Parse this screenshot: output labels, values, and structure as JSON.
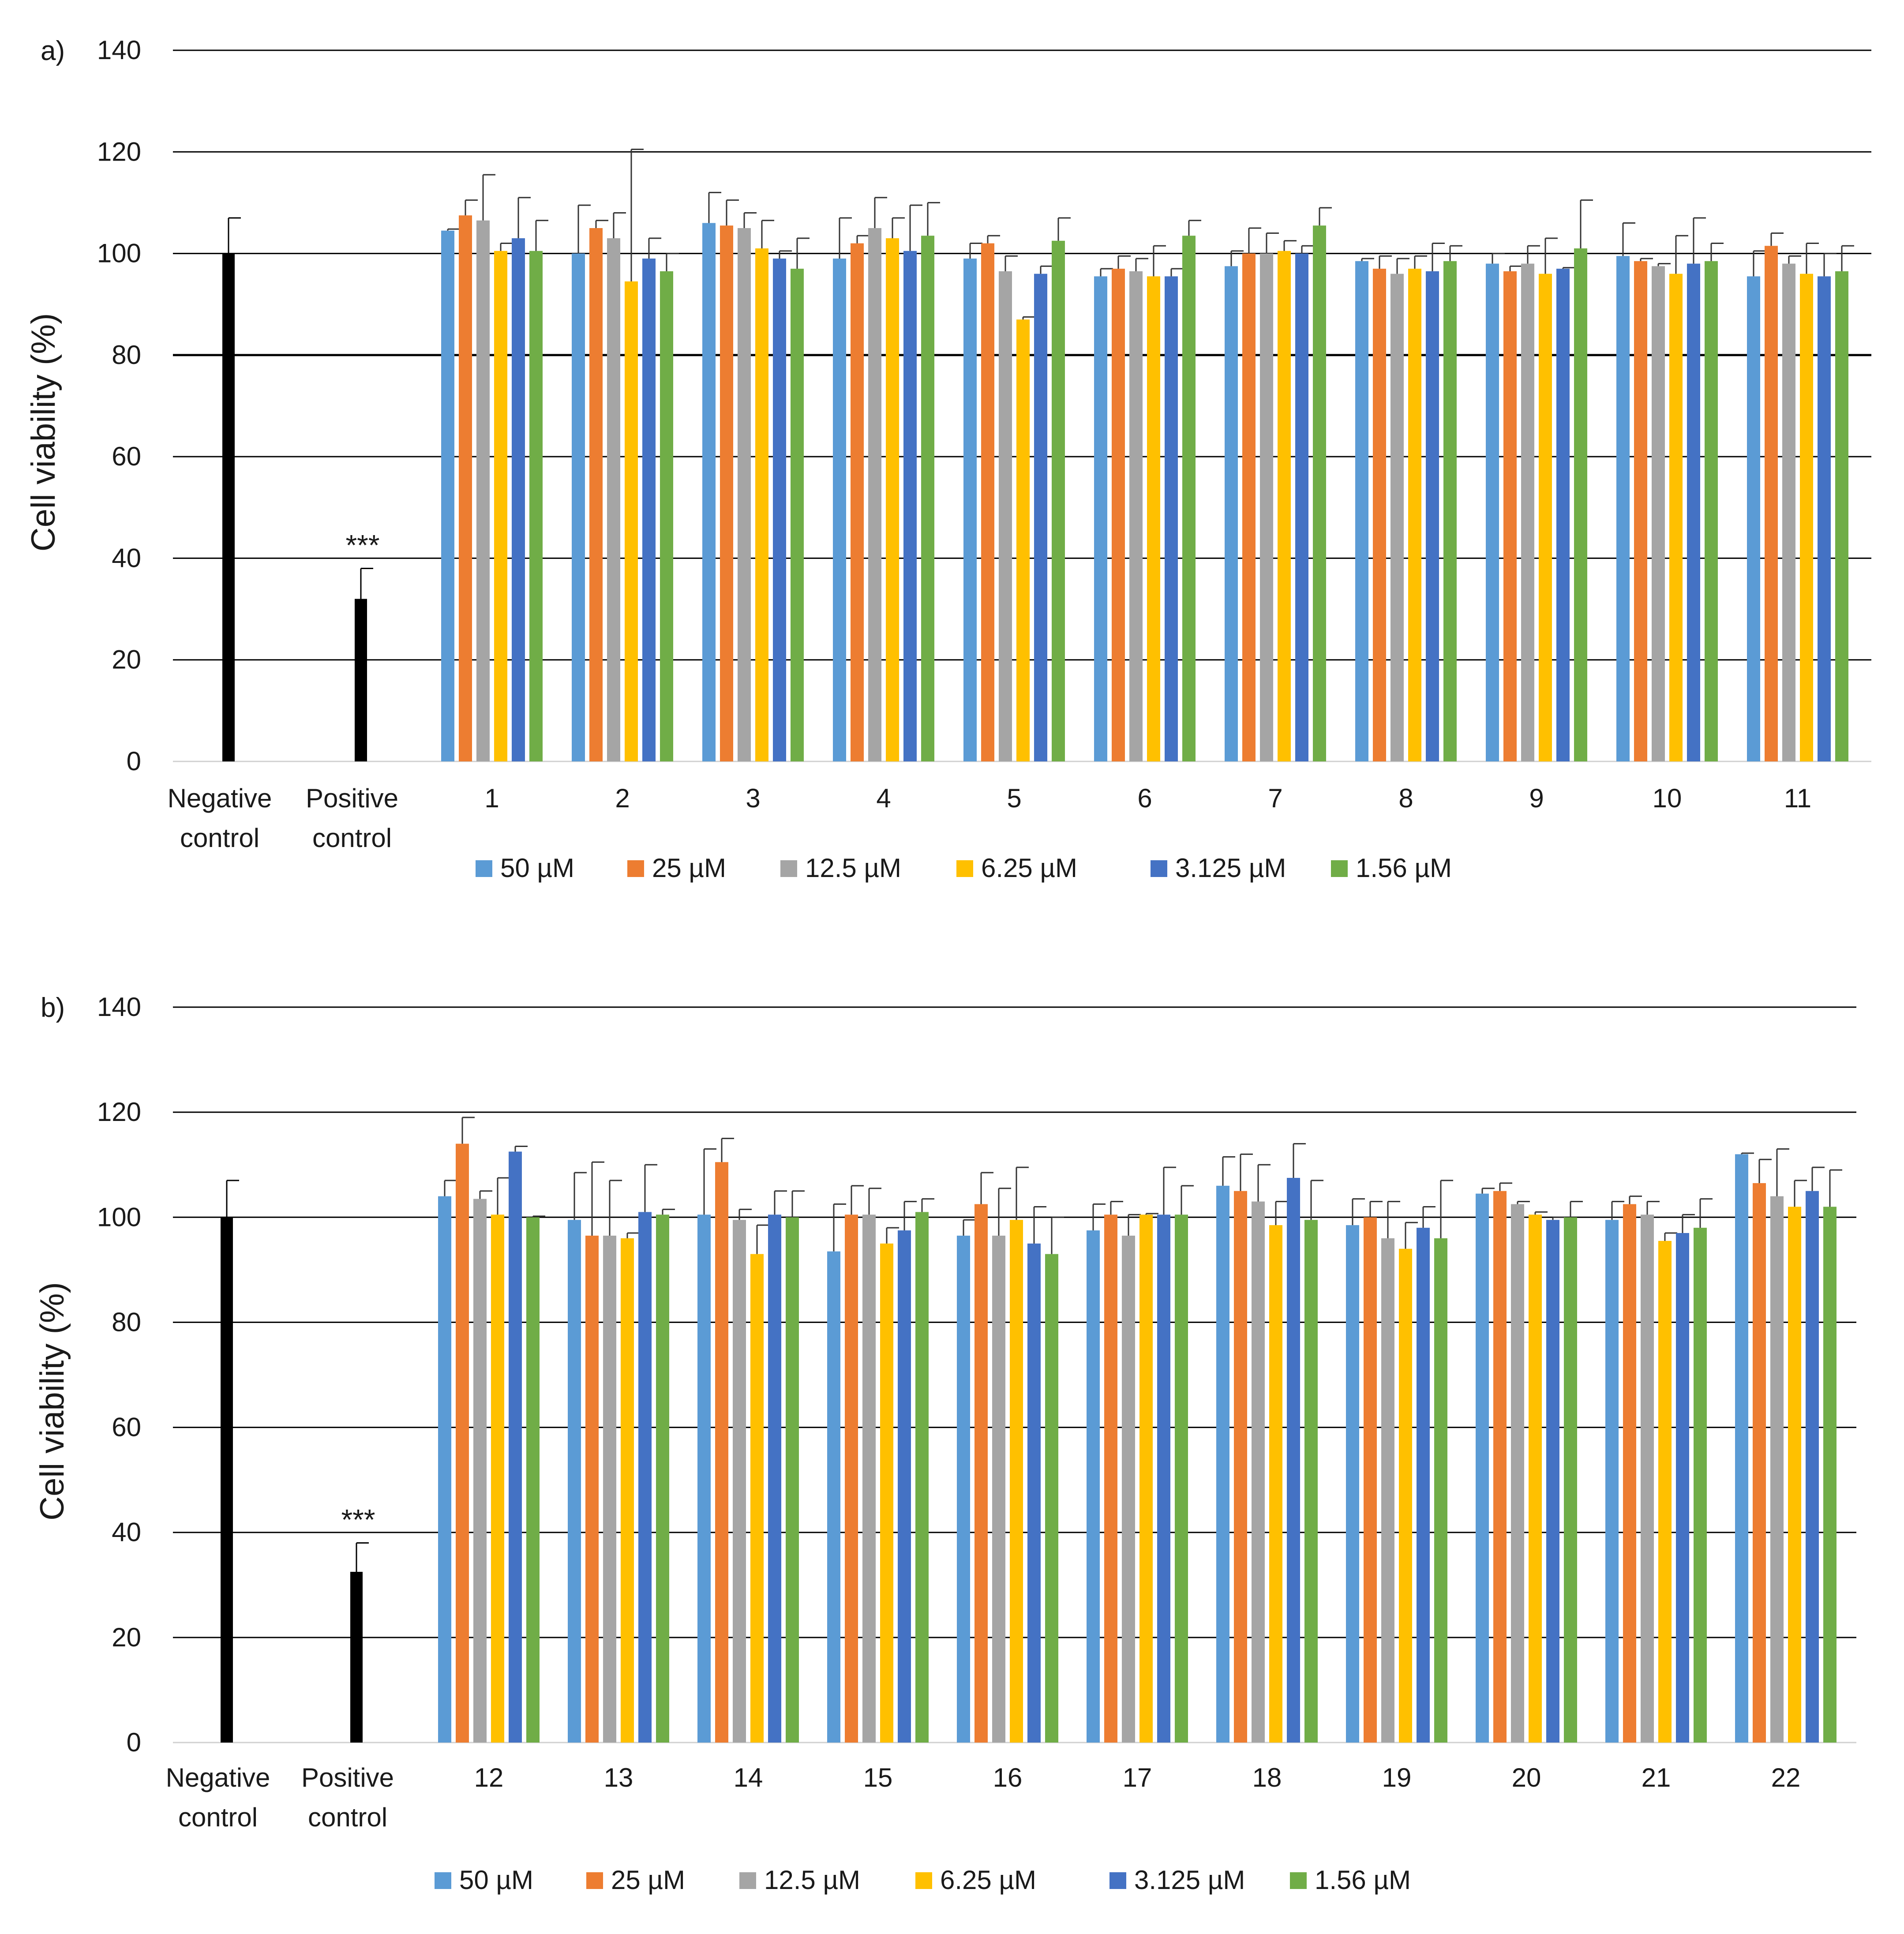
{
  "colors": {
    "control": "#000000",
    "series": [
      "#5B9BD5",
      "#ED7D31",
      "#A5A5A5",
      "#FFC000",
      "#4472C4",
      "#70AD47"
    ],
    "grid": "#000000",
    "text": "#1a1a1a"
  },
  "chart_data": [
    {
      "type": "bar",
      "panel_label": "a)",
      "title": "",
      "xlabel": "",
      "ylabel": "Cell viability (%)",
      "ylim": [
        0,
        140
      ],
      "yticks": [
        "0",
        "20",
        "40",
        "60",
        "80",
        "100",
        "120",
        "140"
      ],
      "grid": true,
      "legend_position": "bottom",
      "controls": [
        {
          "label_lines": [
            "Negative",
            "control"
          ],
          "value": 100,
          "error": 7,
          "annotation": ""
        },
        {
          "label_lines": [
            "Positive",
            "control"
          ],
          "value": 32,
          "error": 6,
          "annotation": "***"
        }
      ],
      "categories": [
        "1",
        "2",
        "3",
        "4",
        "5",
        "6",
        "7",
        "8",
        "9",
        "10",
        "11"
      ],
      "series": [
        {
          "name": "50 µM",
          "values": [
            104.5,
            100,
            106,
            99,
            99,
            95.5,
            97.5,
            98.5,
            98,
            99.5,
            95.5
          ],
          "errors": [
            0.3,
            9.5,
            6,
            8,
            3,
            1.5,
            3,
            0.5,
            2,
            6.5,
            5
          ]
        },
        {
          "name": "25 µM",
          "values": [
            107.5,
            105,
            105.5,
            102,
            102,
            97,
            100,
            97,
            96.5,
            98.5,
            101.5
          ],
          "errors": [
            3,
            1.5,
            5,
            1.5,
            1.5,
            2.5,
            5,
            2.5,
            1,
            0.5,
            2.5
          ]
        },
        {
          "name": "12.5 µM",
          "values": [
            106.5,
            103,
            105,
            105,
            96.5,
            96.5,
            100,
            96,
            98,
            97.5,
            98
          ],
          "errors": [
            9,
            5,
            3,
            6,
            3,
            2.5,
            4,
            3,
            3.5,
            0.5,
            1.5
          ]
        },
        {
          "name": "6.25 µM",
          "values": [
            100.5,
            94.5,
            101,
            103,
            87,
            95.5,
            100.5,
            97,
            96,
            96,
            96
          ],
          "errors": [
            1.5,
            26,
            5.5,
            4,
            0.5,
            6,
            2,
            2.5,
            7,
            7.5,
            6
          ]
        },
        {
          "name": "3.125 µM",
          "values": [
            103,
            99,
            99,
            100.5,
            96,
            95.5,
            100,
            96.5,
            97,
            98,
            95.5
          ],
          "errors": [
            8,
            4,
            1.5,
            9,
            1.5,
            1.5,
            1.5,
            5.5,
            0.2,
            9,
            4.5
          ]
        },
        {
          "name": "1.56 µM",
          "values": [
            100.5,
            96.5,
            97,
            103.5,
            102.5,
            103.5,
            105.5,
            98.5,
            101,
            98.5,
            96.5
          ],
          "errors": [
            6,
            3.5,
            6,
            6.5,
            4.5,
            3,
            3.5,
            3,
            9.5,
            3.5,
            5
          ]
        }
      ]
    },
    {
      "type": "bar",
      "panel_label": "b)",
      "title": "",
      "xlabel": "",
      "ylabel": "Cell viability (%)",
      "ylim": [
        0,
        140
      ],
      "yticks": [
        "0",
        "20",
        "40",
        "60",
        "80",
        "100",
        "120",
        "140"
      ],
      "grid": true,
      "legend_position": "bottom",
      "controls": [
        {
          "label_lines": [
            "Negative",
            "control"
          ],
          "value": 100,
          "error": 7,
          "annotation": ""
        },
        {
          "label_lines": [
            "Positive",
            "control"
          ],
          "value": 32.5,
          "error": 5.5,
          "annotation": "***"
        }
      ],
      "categories": [
        "12",
        "13",
        "14",
        "15",
        "16",
        "17",
        "18",
        "19",
        "20",
        "21",
        "22"
      ],
      "series": [
        {
          "name": "50 µM",
          "values": [
            104,
            99.5,
            100.5,
            93.5,
            96.5,
            97.5,
            106,
            98.5,
            104.5,
            99.5,
            112
          ],
          "errors": [
            3,
            9,
            12.5,
            9,
            3,
            5,
            5.5,
            5,
            1,
            3.5,
            0.2
          ]
        },
        {
          "name": "25 µM",
          "values": [
            114,
            96.5,
            110.5,
            100.5,
            102.5,
            100.5,
            105,
            100,
            105,
            102.5,
            106.5
          ],
          "errors": [
            5,
            14,
            4.5,
            5.5,
            6,
            2.5,
            7,
            3,
            1.5,
            1.5,
            4.5
          ]
        },
        {
          "name": "12.5 µM",
          "values": [
            103.5,
            96.5,
            99.5,
            100.5,
            96.5,
            96.5,
            103,
            96,
            102.5,
            100.5,
            104
          ],
          "errors": [
            1.5,
            10.5,
            2,
            5,
            9,
            4,
            7,
            7,
            0.5,
            2.5,
            9
          ]
        },
        {
          "name": "6.25 µM",
          "values": [
            100.5,
            96,
            93,
            95,
            99.5,
            100.5,
            98.5,
            94,
            100.5,
            95.5,
            102
          ],
          "errors": [
            7,
            1,
            5.5,
            3,
            10,
            0.2,
            4.5,
            5,
            0.5,
            1.5,
            5
          ]
        },
        {
          "name": "3.125 µM",
          "values": [
            112.5,
            101,
            100.5,
            97.5,
            95,
            100.5,
            107.5,
            98,
            99.5,
            97,
            105
          ],
          "errors": [
            1,
            9,
            4.5,
            5.5,
            7,
            9,
            6.5,
            4,
            0.5,
            3.5,
            4.5
          ]
        },
        {
          "name": "1.56 µM",
          "values": [
            100,
            100.5,
            100,
            101,
            93,
            100.5,
            99.5,
            96,
            100,
            98,
            102
          ],
          "errors": [
            0.2,
            1,
            5,
            2.5,
            7,
            5.5,
            7.5,
            11,
            3,
            5.5,
            7
          ]
        }
      ]
    }
  ]
}
